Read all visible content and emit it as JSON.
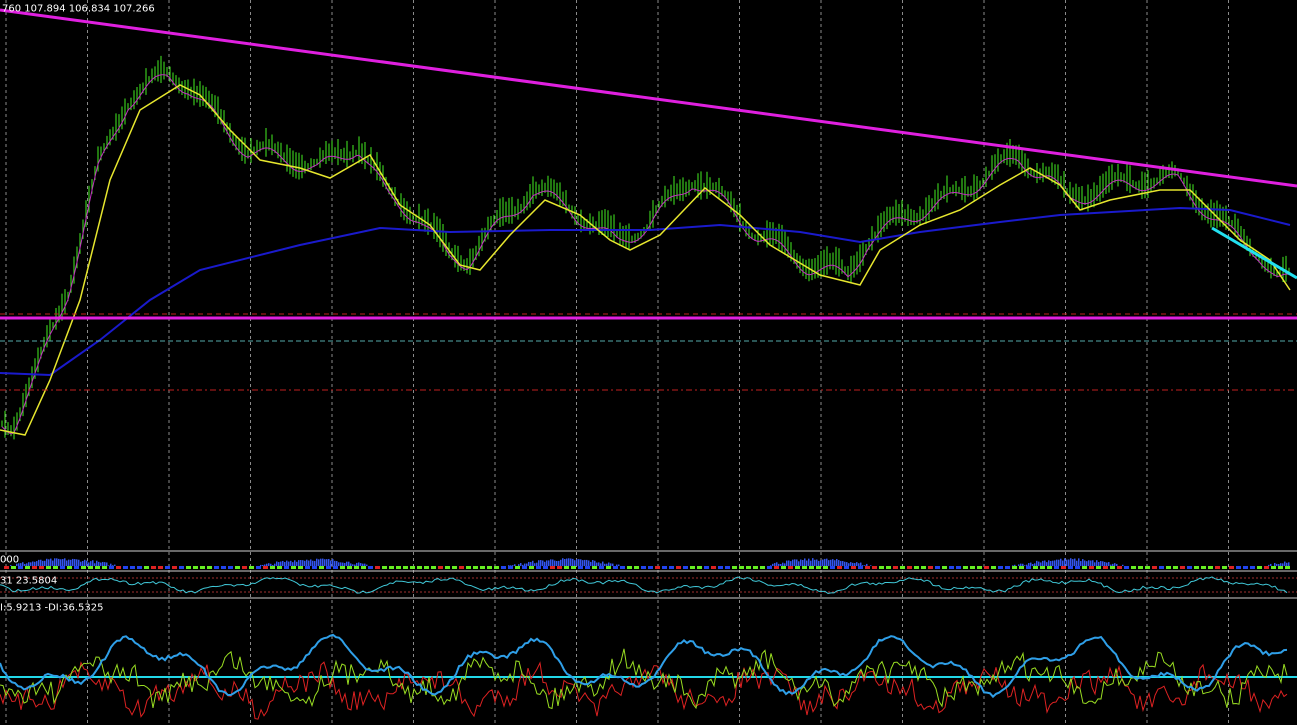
{
  "main_panel": {
    "ohlc_label": "760 107.894 106.834 107.266"
  },
  "histogram_panel": {
    "label": "000"
  },
  "oscillator_panel": {
    "label": "31 23.5804"
  },
  "dmi_panel": {
    "label": "I:5.9213 -DI:36.5325"
  }
}
